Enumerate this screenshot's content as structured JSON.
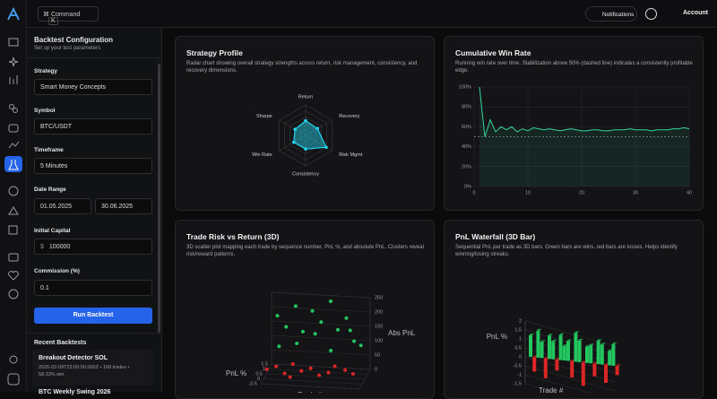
{
  "topbar": {
    "command": "Command",
    "shortcut": "K",
    "notifications": "Notifications",
    "account": "Account"
  },
  "config": {
    "title": "Backtest Configuration",
    "subtitle": "Set up your test parameters",
    "strategy": {
      "label": "Strategy",
      "value": "Smart Money Concepts"
    },
    "symbol": {
      "label": "Symbol",
      "value": "BTC/USDT"
    },
    "timeframe": {
      "label": "Timeframe",
      "value": "5 Minutes"
    },
    "date_range": {
      "label": "Date Range",
      "from": "01.05.2025",
      "to": "30.06.2025"
    },
    "capital": {
      "label": "Initial Capital",
      "prefix": "$",
      "value": "100000"
    },
    "commission": {
      "label": "Commission (%)",
      "value": "0.1"
    },
    "run_button": "Run Backtest"
  },
  "recent": {
    "title": "Recent Backtests",
    "items": [
      {
        "name": "Breakout Detector SOL",
        "meta": "2026-02-09T23:00:00.000Z • 168 trades • 58.33% win"
      },
      {
        "name": "BTC Weekly Swing 2026"
      }
    ]
  },
  "chart_data": [
    {
      "type": "radar",
      "title": "Strategy Profile",
      "subtitle": "Radar chart showing overall strategy strengths across return, risk management, consistency, and recovery dimensions.",
      "categories": [
        "Return",
        "Recovery",
        "Risk Mgmt",
        "Consistency",
        "Win Rate",
        "Sharpe"
      ],
      "values": [
        48,
        45,
        78,
        45,
        45,
        40
      ],
      "rlim": [
        0,
        100
      ],
      "color": "#22d3ee"
    },
    {
      "type": "line",
      "title": "Cumulative Win Rate",
      "subtitle": "Running win rate over time. Stabilization above 50% (dashed line) indicates a consistently profitable edge.",
      "x": [
        1,
        2,
        3,
        4,
        5,
        6,
        7,
        8,
        9,
        10,
        11,
        12,
        13,
        14,
        15,
        16,
        17,
        18,
        19,
        20,
        21,
        22,
        23,
        24,
        25,
        26,
        27,
        28,
        29,
        30,
        31,
        32,
        33,
        34,
        35,
        36,
        37,
        38,
        39,
        40
      ],
      "values": [
        100,
        50,
        67,
        55,
        60,
        57,
        60,
        55,
        58,
        56,
        59,
        58,
        57,
        58,
        57,
        56,
        57,
        58,
        57,
        56,
        56,
        57,
        57,
        56,
        56,
        57,
        57,
        57,
        58,
        57,
        57,
        57,
        56,
        57,
        57,
        57,
        58,
        58,
        59,
        58
      ],
      "color": "#34d399",
      "xlim": [
        0,
        40
      ],
      "xticks": [
        0,
        10,
        20,
        30,
        40
      ],
      "ylim": [
        0,
        100
      ],
      "yticks": [
        {
          "value": 0,
          "label": "0%"
        },
        {
          "value": 20,
          "label": "20%"
        },
        {
          "value": 40,
          "label": "40%"
        },
        {
          "value": 60,
          "label": "60%"
        },
        {
          "value": 80,
          "label": "80%"
        },
        {
          "value": 100,
          "label": "100%"
        }
      ],
      "reference_line": 50,
      "grid": true
    },
    {
      "type": "scatter3d",
      "title": "Trade Risk vs Return (3D)",
      "subtitle": "3D scatter plot mapping each trade by sequence number, PnL %, and absolute PnL. Clusters reveal risk/reward patterns.",
      "xlabel": "Trade #",
      "ylabel": "PnL %",
      "zlabel": "Abs PnL",
      "xlim": [
        0,
        40
      ],
      "ylim": [
        -0.5,
        1.5
      ],
      "yticks": [
        -0.5,
        0,
        0.5,
        1,
        1.5
      ],
      "zlim": [
        0,
        250
      ],
      "zticks": [
        0,
        50,
        100,
        150,
        200,
        250
      ],
      "series": [
        {
          "color": "#22c55e",
          "x": [
            3,
            7,
            10,
            14,
            17,
            21,
            24,
            28,
            31,
            35,
            5,
            12,
            19,
            26,
            33,
            38
          ],
          "y": [
            1.2,
            1.0,
            1.4,
            0.9,
            1.3,
            1.1,
            1.5,
            1.0,
            1.2,
            0.8,
            0.6,
            0.7,
            0.9,
            0.6,
            1.0,
            0.7
          ],
          "z": [
            180,
            150,
            210,
            140,
            200,
            170,
            230,
            150,
            185,
            120,
            95,
            105,
            135,
            90,
            150,
            110
          ]
        },
        {
          "color": "#dc2626",
          "x": [
            2,
            6,
            9,
            13,
            16,
            20,
            23,
            27,
            30,
            34,
            37,
            11
          ],
          "y": [
            -0.3,
            -0.4,
            -0.2,
            -0.5,
            -0.3,
            -0.4,
            -0.2,
            -0.3,
            -0.5,
            -0.4,
            -0.3,
            -0.1
          ],
          "z": [
            45,
            60,
            30,
            75,
            45,
            60,
            30,
            45,
            75,
            60,
            45,
            15
          ]
        }
      ]
    },
    {
      "type": "bar3d",
      "title": "PnL Waterfall (3D Bar)",
      "subtitle": "Sequential PnL per trade as 3D bars. Green bars are wins, red bars are losses. Helps identify winning/losing streaks.",
      "xlabel": "Trade #",
      "ylabel": "PnL %",
      "values": [
        1.2,
        -0.8,
        1.5,
        0.9,
        -1.1,
        1.3,
        1.0,
        -0.6,
        1.4,
        0.8,
        1.1,
        -0.9,
        1.6,
        1.2,
        -1.3,
        0.9,
        1.0,
        -0.7,
        1.3,
        1.1,
        -1.0,
        0.8,
        1.2,
        -0.5
      ],
      "ylim": [
        -1.5,
        2
      ],
      "yticks": [
        -1.5,
        -1,
        -0.5,
        0,
        0.5,
        1,
        1.5,
        2
      ],
      "win_color": "#22c55e",
      "loss_color": "#dc2626"
    }
  ]
}
